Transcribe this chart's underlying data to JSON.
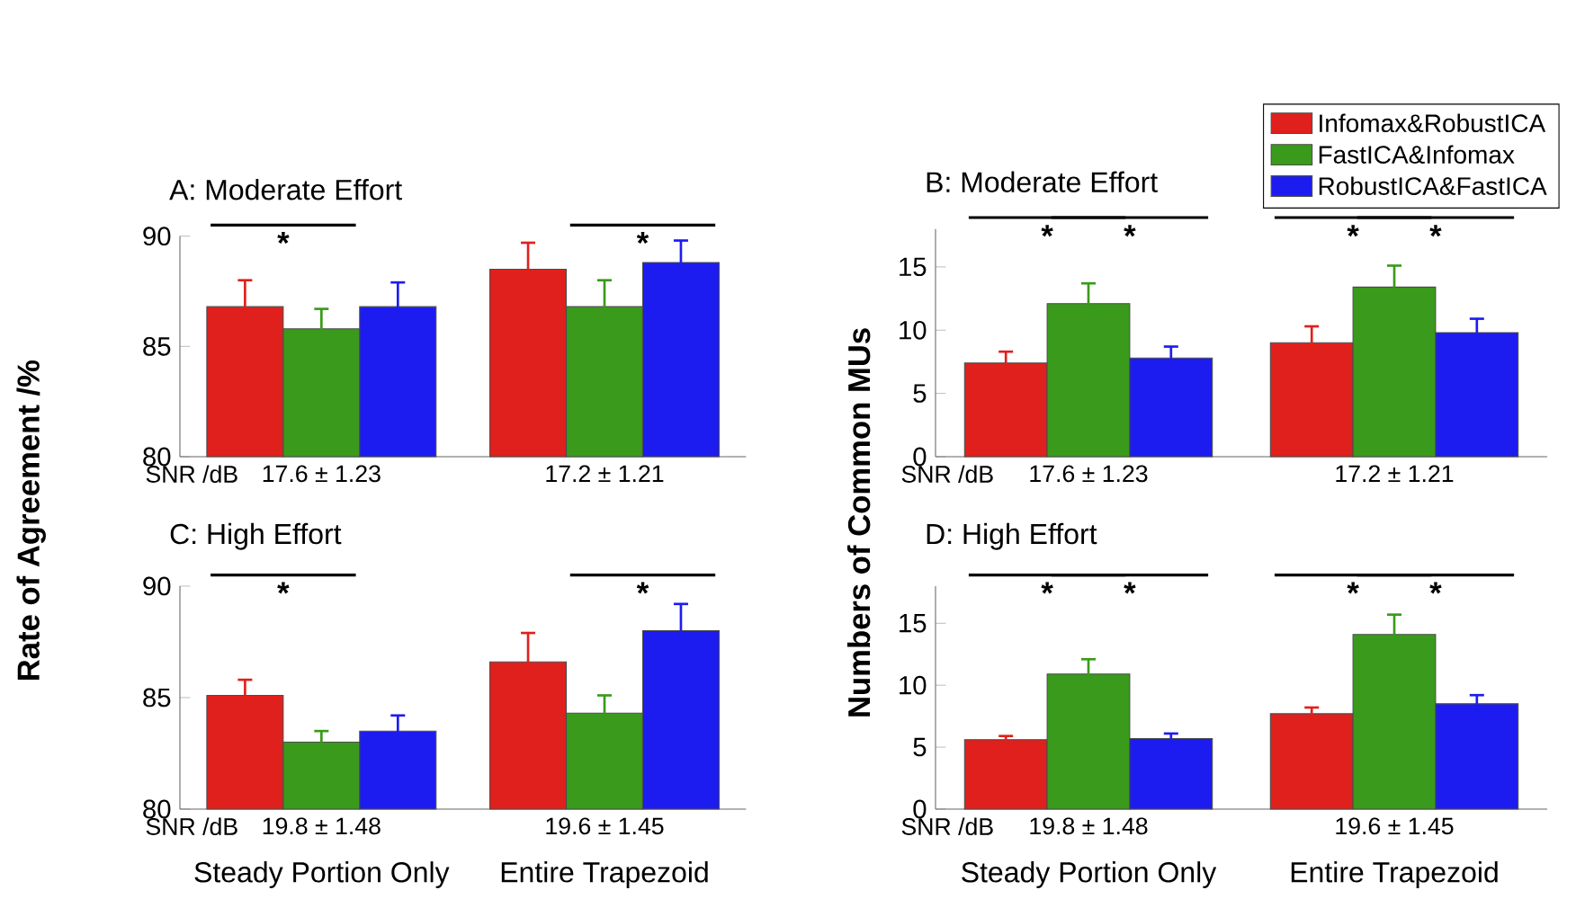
{
  "chart_data": [
    {
      "type": "bar",
      "title": "A: Moderate Effort",
      "ylabel": "Rate of Agreement  /%",
      "categories": [
        null,
        null
      ],
      "tick_labels": "y",
      "ylim": [
        80,
        90
      ],
      "yticks": [
        80,
        85,
        90
      ],
      "grid": false,
      "legend": false,
      "series": [
        {
          "color": "#e0201c",
          "values": [
            86.8,
            88.5
          ],
          "errors": [
            1.2,
            1.2
          ]
        },
        {
          "color": "#3a9a1c",
          "values": [
            85.8,
            86.8
          ],
          "errors": [
            0.9,
            1.2
          ]
        },
        {
          "color": "#1c1cf0",
          "values": [
            86.8,
            88.8
          ],
          "errors": [
            1.1,
            1.0
          ]
        }
      ],
      "annotations": [
        "SNR /dB",
        "17.6 ± 1.23",
        "17.2 ± 1.21",
        "*",
        "*"
      ]
    },
    {
      "type": "bar",
      "title": "B: Moderate Effort",
      "ylabel": "Numbers of Common MUs",
      "categories": [
        null,
        null
      ],
      "tick_labels": "y",
      "ylim": [
        0,
        18
      ],
      "yticks": [
        0,
        5,
        10,
        15
      ],
      "grid": false,
      "legend": "top right",
      "series": [
        {
          "name": "Infomax&RobustICA",
          "color": "#e0201c",
          "values": [
            7.4,
            9.0
          ],
          "errors": [
            0.9,
            1.3
          ]
        },
        {
          "name": "FastICA&Infomax",
          "color": "#3a9a1c",
          "values": [
            12.1,
            13.4
          ],
          "errors": [
            1.6,
            1.7
          ]
        },
        {
          "name": "RobustICA&FastICA",
          "color": "#1c1cf0",
          "values": [
            7.8,
            9.8
          ],
          "errors": [
            0.9,
            1.1
          ]
        }
      ],
      "annotations": [
        "SNR /dB",
        "17.6 ± 1.23",
        "17.2 ± 1.21",
        "*",
        "*",
        "*",
        "*"
      ]
    },
    {
      "type": "bar",
      "title": "C: High Effort",
      "categories": [
        "Steady Portion Only",
        "Entire Trapezoid"
      ],
      "ylim": [
        80,
        90
      ],
      "yticks": [
        80,
        85,
        90
      ],
      "grid": false,
      "legend": false,
      "series": [
        {
          "color": "#e0201c",
          "values": [
            85.1,
            86.6
          ],
          "errors": [
            0.7,
            1.3
          ]
        },
        {
          "color": "#3a9a1c",
          "values": [
            83.0,
            84.3
          ],
          "errors": [
            0.5,
            0.8
          ]
        },
        {
          "color": "#1c1cf0",
          "values": [
            83.5,
            88.0
          ],
          "errors": [
            0.7,
            1.2
          ]
        }
      ],
      "annotations": [
        "SNR /dB",
        "19.8 ± 1.48",
        "19.6 ± 1.45",
        "*",
        "*"
      ]
    },
    {
      "type": "bar",
      "title": "D: High Effort",
      "categories": [
        "Steady Portion Only",
        "Entire Trapezoid"
      ],
      "ylim": [
        0,
        18
      ],
      "yticks": [
        0,
        5,
        10,
        15
      ],
      "grid": false,
      "legend": false,
      "series": [
        {
          "color": "#e0201c",
          "values": [
            5.6,
            7.7
          ],
          "errors": [
            0.3,
            0.5
          ]
        },
        {
          "color": "#3a9a1c",
          "values": [
            10.9,
            14.1
          ],
          "errors": [
            1.2,
            1.6
          ]
        },
        {
          "color": "#1c1cf0",
          "values": [
            5.7,
            8.5
          ],
          "errors": [
            0.4,
            0.7
          ]
        }
      ],
      "annotations": [
        "SNR /dB",
        "19.8 ± 1.48",
        "19.6 ± 1.45",
        "*",
        "*",
        "*",
        "*"
      ]
    }
  ]
}
